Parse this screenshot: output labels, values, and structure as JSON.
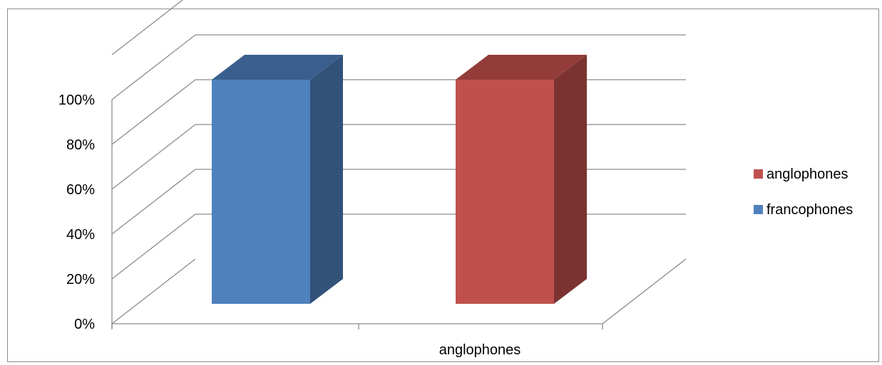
{
  "chart_data": {
    "type": "bar",
    "style": "3d-clustered-column",
    "categories": [
      "anglophones"
    ],
    "series": [
      {
        "name": "francophones",
        "values": [
          1.0
        ],
        "color": "#4F81BD",
        "side_color": "#325279",
        "top_color": "#3A5F8E"
      },
      {
        "name": "anglophones",
        "values": [
          1.0
        ],
        "color": "#C0504D",
        "side_color": "#7B3331",
        "top_color": "#943C3A"
      }
    ],
    "y_ticks": [
      "0%",
      "20%",
      "40%",
      "60%",
      "80%",
      "100%"
    ],
    "ylim": [
      0,
      1
    ],
    "grid": true,
    "legend_position": "right",
    "legend_order": [
      "anglophones",
      "francophones"
    ]
  }
}
